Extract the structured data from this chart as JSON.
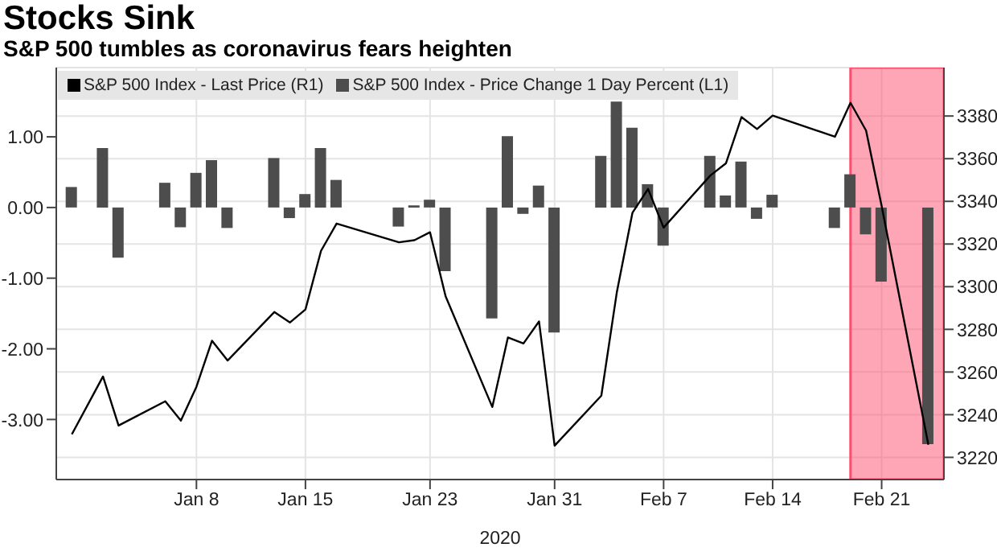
{
  "chart_data": {
    "type": "bar",
    "title": "Stocks Sink",
    "subtitle": "S&P 500 tumbles as coronavirus fears heighten",
    "xlabel": "2020",
    "x": [
      "2019-12-31",
      "2020-01-02",
      "2020-01-03",
      "2020-01-06",
      "2020-01-07",
      "2020-01-08",
      "2020-01-09",
      "2020-01-10",
      "2020-01-13",
      "2020-01-14",
      "2020-01-15",
      "2020-01-16",
      "2020-01-17",
      "2020-01-21",
      "2020-01-22",
      "2020-01-23",
      "2020-01-24",
      "2020-01-27",
      "2020-01-28",
      "2020-01-29",
      "2020-01-30",
      "2020-01-31",
      "2020-02-03",
      "2020-02-04",
      "2020-02-05",
      "2020-02-06",
      "2020-02-07",
      "2020-02-10",
      "2020-02-11",
      "2020-02-12",
      "2020-02-13",
      "2020-02-14",
      "2020-02-18",
      "2020-02-19",
      "2020-02-20",
      "2020-02-21",
      "2020-02-24"
    ],
    "xlim": [
      "2019-12-30",
      "2020-02-25"
    ],
    "xticks": [
      {
        "value": "2020-01-08",
        "label": "Jan 8"
      },
      {
        "value": "2020-01-15",
        "label": "Jan 15"
      },
      {
        "value": "2020-01-23",
        "label": "Jan 23"
      },
      {
        "value": "2020-01-31",
        "label": "Jan 31"
      },
      {
        "value": "2020-02-07",
        "label": "Feb 7"
      },
      {
        "value": "2020-02-14",
        "label": "Feb 14"
      },
      {
        "value": "2020-02-21",
        "label": "Feb 21"
      }
    ],
    "series": [
      {
        "name": "S&P 500 Index - Last Price (R1)",
        "type": "line",
        "axis": "y2",
        "color": "#000000",
        "values": [
          3230.8,
          3257.9,
          3234.9,
          3246.3,
          3237.2,
          3253.1,
          3274.7,
          3265.4,
          3288.1,
          3283.2,
          3289.3,
          3316.8,
          3329.6,
          3320.8,
          3321.8,
          3325.5,
          3295.5,
          3243.6,
          3276.2,
          3273.4,
          3283.7,
          3225.5,
          3248.9,
          3297.6,
          3334.7,
          3345.8,
          3327.7,
          3352.1,
          3357.8,
          3379.5,
          3373.9,
          3380.2,
          3370.3,
          3386.2,
          3373.2,
          3337.8,
          3225.9
        ]
      },
      {
        "name": "S&P 500 Index - Price Change 1 Day Percent (L1)",
        "color": "#4d4d4d",
        "values": [
          0.29,
          0.84,
          -0.71,
          0.35,
          -0.28,
          0.49,
          0.67,
          -0.29,
          0.7,
          -0.15,
          0.19,
          0.84,
          0.39,
          -0.27,
          0.03,
          0.11,
          -0.9,
          -1.57,
          1.01,
          -0.09,
          0.31,
          -1.77,
          0.73,
          1.5,
          1.13,
          0.33,
          -0.54,
          0.73,
          0.17,
          0.65,
          -0.16,
          0.18,
          -0.29,
          0.47,
          -0.38,
          -1.05,
          -3.35
        ]
      }
    ],
    "ylim": [
      -3.85,
      1.98
    ],
    "yticks": [
      {
        "value": -3,
        "label": "-3.00"
      },
      {
        "value": -2,
        "label": "-2.00"
      },
      {
        "value": -1,
        "label": "-1.00"
      },
      {
        "value": 0,
        "label": "0.00"
      },
      {
        "value": 1,
        "label": "1.00"
      }
    ],
    "y2lim": [
      3209.6,
      3402.7
    ],
    "y2ticks": [
      3220,
      3240,
      3260,
      3280,
      3300,
      3320,
      3340,
      3360,
      3380
    ],
    "bands": [
      {
        "axis": "x",
        "from": "2020-02-19",
        "to": "2020-02-25",
        "color": "#ff4d6d"
      }
    ],
    "grid": true,
    "legend": "top left",
    "marker": "none",
    "line_style": "solid"
  }
}
